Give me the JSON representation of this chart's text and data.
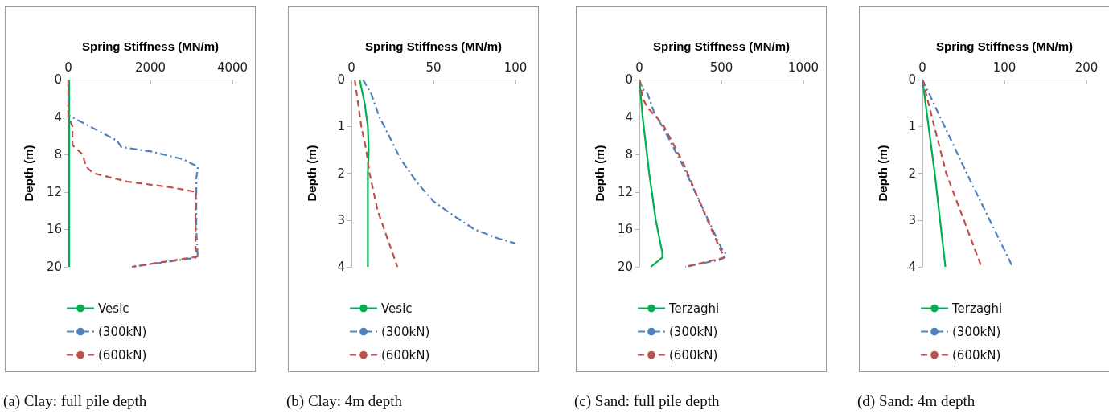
{
  "chart_data": [
    {
      "type": "line",
      "xlabel": "Spring Stiffness (MN/m)",
      "ylabel": "Depth (m)",
      "xlim": [
        0,
        4000
      ],
      "xticks": [
        0,
        2000,
        4000
      ],
      "ylim": [
        20,
        0
      ],
      "yticks": [
        0,
        4,
        8,
        12,
        16,
        20
      ],
      "grid": false,
      "legend": "bottom",
      "marker": "none",
      "annotations": [
        "(a) Clay: full pile depth"
      ],
      "series": [
        {
          "name": "Vesic",
          "color": "#00b050",
          "line_style": "solid",
          "x": [
            20,
            20,
            20
          ],
          "values": [
            0,
            10,
            20
          ]
        },
        {
          "name": "(300kN)",
          "color": "#4f81bd",
          "line_style": "dashdot",
          "x": [
            0,
            0,
            1180,
            1290,
            2040,
            2790,
            3160,
            3120,
            3120,
            3120,
            3150,
            3150,
            1550
          ],
          "values": [
            0,
            3.8,
            6.5,
            7.2,
            7.7,
            8.5,
            9.3,
            10.5,
            12,
            16,
            18.5,
            19,
            20
          ]
        },
        {
          "name": "(600kN)",
          "color": "#c0504d",
          "line_style": "dashed",
          "x": [
            0,
            0,
            100,
            100,
            350,
            430,
            610,
            1440,
            2490,
            3120,
            3100,
            3100,
            3150,
            1550
          ],
          "values": [
            0,
            4,
            5,
            7,
            8,
            9.3,
            10,
            10.9,
            11.5,
            12,
            13,
            18,
            18.9,
            20
          ]
        }
      ]
    },
    {
      "type": "line",
      "xlabel": "Spring Stiffness (MN/m)",
      "ylabel": "Depth (m)",
      "xlim": [
        0,
        100
      ],
      "xticks": [
        0,
        50,
        100
      ],
      "ylim": [
        4,
        0
      ],
      "yticks": [
        0,
        1,
        2,
        3,
        4
      ],
      "grid": false,
      "legend": "bottom",
      "marker": "none",
      "annotations": [
        "(b) Clay: 4m depth"
      ],
      "series": [
        {
          "name": "Vesic",
          "color": "#00b050",
          "line_style": "solid",
          "x": [
            5,
            8,
            10,
            10.5,
            10,
            10,
            10
          ],
          "values": [
            0,
            0.5,
            1,
            1.5,
            2,
            3,
            4
          ]
        },
        {
          "name": "(300kN)",
          "color": "#4f81bd",
          "line_style": "dashdot",
          "x": [
            7,
            12,
            17,
            20,
            30,
            40,
            50,
            62,
            75,
            90,
            100
          ],
          "values": [
            0,
            0.3,
            0.8,
            1,
            1.7,
            2.2,
            2.6,
            2.9,
            3.2,
            3.4,
            3.5
          ]
        },
        {
          "name": "(600kN)",
          "color": "#c0504d",
          "line_style": "dashed",
          "x": [
            2,
            4,
            6,
            9,
            11,
            16,
            22,
            28
          ],
          "values": [
            0,
            0.5,
            1,
            1.5,
            2,
            2.8,
            3.4,
            4
          ]
        }
      ]
    },
    {
      "type": "line",
      "xlabel": "Spring Stiffness (MN/m)",
      "ylabel": "Depth (m)",
      "xlim": [
        0,
        1000
      ],
      "xticks": [
        0,
        500,
        1000
      ],
      "ylim": [
        20,
        0
      ],
      "yticks": [
        0,
        4,
        8,
        12,
        16,
        20
      ],
      "grid": false,
      "legend": "bottom",
      "marker": "none",
      "annotations": [
        "(c) Sand: full pile depth"
      ],
      "series": [
        {
          "name": "Terzaghi",
          "color": "#00b050",
          "line_style": "solid",
          "x": [
            0,
            20,
            60,
            100,
            140,
            140,
            70
          ],
          "values": [
            0,
            4,
            10,
            15,
            18.5,
            19,
            20
          ]
        },
        {
          "name": "(300kN)",
          "color": "#4f81bd",
          "line_style": "dashdot",
          "x": [
            0,
            20,
            50,
            90,
            140,
            260,
            380,
            500,
            530,
            500,
            280
          ],
          "values": [
            0,
            1,
            1.5,
            3.5,
            5,
            9,
            13.5,
            18,
            18.7,
            19.2,
            20
          ]
        },
        {
          "name": "(600kN)",
          "color": "#c0504d",
          "line_style": "dashed",
          "x": [
            0,
            20,
            50,
            130,
            150,
            270,
            390,
            490,
            520,
            280
          ],
          "values": [
            0,
            2,
            3,
            4.5,
            5,
            9,
            14,
            18,
            19,
            20
          ]
        }
      ]
    },
    {
      "type": "line",
      "xlabel": "Spring Stiffness (MN/m)",
      "ylabel": "Depth (m)",
      "xlim": [
        0,
        200
      ],
      "xticks": [
        0,
        100,
        200
      ],
      "ylim": [
        4,
        0
      ],
      "yticks": [
        0,
        1,
        2,
        3,
        4
      ],
      "grid": false,
      "legend": "bottom",
      "marker": "none",
      "annotations": [
        "(d) Sand: 4m depth"
      ],
      "series": [
        {
          "name": "Terzaghi",
          "color": "#00b050",
          "line_style": "solid",
          "x": [
            0,
            15,
            28
          ],
          "values": [
            0,
            2,
            4
          ]
        },
        {
          "name": "(300kN)",
          "color": "#4f81bd",
          "line_style": "dashdot",
          "x": [
            0,
            54,
            110
          ],
          "values": [
            0,
            2,
            4
          ]
        },
        {
          "name": "(600kN)",
          "color": "#c0504d",
          "line_style": "dashed",
          "x": [
            0,
            29,
            72
          ],
          "values": [
            0,
            2,
            4
          ]
        }
      ]
    }
  ]
}
